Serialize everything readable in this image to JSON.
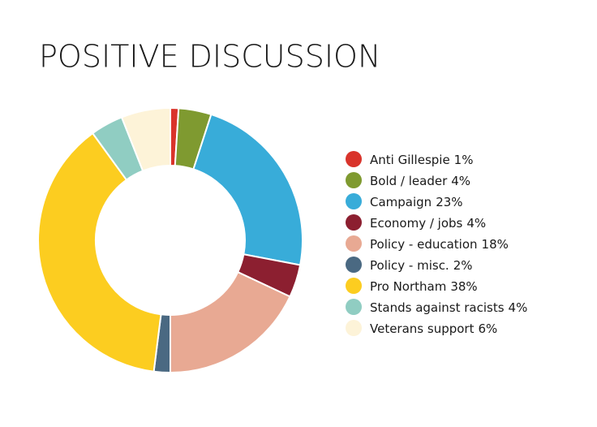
{
  "chart_data": {
    "type": "donut",
    "title": "POSITIVE DISCUSSION",
    "categories": [
      "Anti Gillespie",
      "Bold / leader",
      "Campaign",
      "Economy / jobs",
      "Policy - education",
      "Policy - misc.",
      "Pro Northam",
      "Stands against racists",
      "Veterans support"
    ],
    "values": [
      1,
      4,
      23,
      4,
      18,
      2,
      38,
      4,
      6
    ],
    "value_labels": [
      "1%",
      "4%",
      "23%",
      "4%",
      "18%",
      "2%",
      "38%",
      "4%",
      "6%"
    ],
    "colors": [
      "#d9342b",
      "#7f9a30",
      "#38acd9",
      "#8c1f30",
      "#e8a993",
      "#4a6982",
      "#fccd20",
      "#90cdc2",
      "#fdf3d8"
    ],
    "legend": "right"
  }
}
